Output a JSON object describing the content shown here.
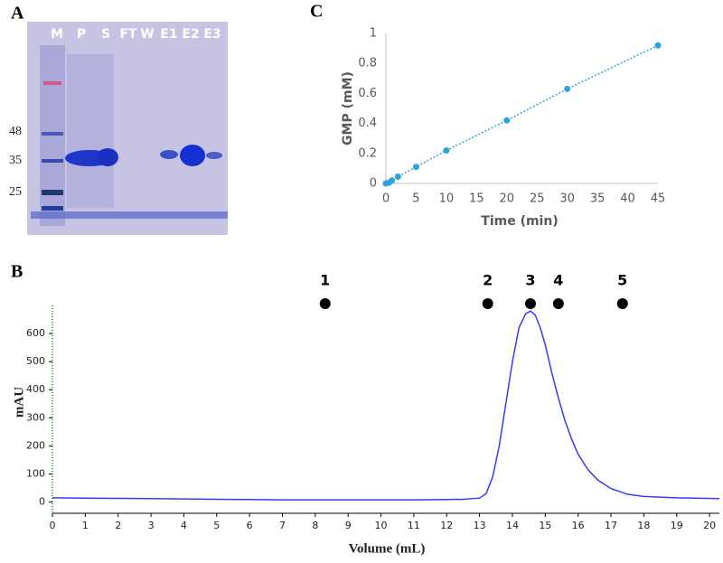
{
  "gel": {
    "panel_label": "A",
    "lanes": [
      "M",
      "P",
      "S",
      "FT",
      "W",
      "E1",
      "E2",
      "E3"
    ],
    "markers": [
      48,
      35,
      25
    ]
  },
  "chart_data": [
    {
      "type": "scatter",
      "panel_label": "C",
      "x": [
        0,
        0.5,
        1,
        2,
        5,
        10,
        20,
        30,
        45
      ],
      "values": [
        0,
        0.005,
        0.02,
        0.045,
        0.11,
        0.22,
        0.42,
        0.63,
        0.92
      ],
      "color": "#2ea3dc",
      "xlim": [
        0,
        45
      ],
      "ylim": [
        0,
        1
      ],
      "xticks": [
        0,
        5,
        10,
        15,
        20,
        25,
        30,
        35,
        40,
        45
      ],
      "yticks": [
        0,
        0.2,
        0.4,
        0.6,
        0.8,
        1
      ],
      "xlabel": "Time (min)",
      "ylabel": "GMP (mM)"
    },
    {
      "type": "line",
      "panel_label": "B",
      "x": [
        0,
        1,
        2,
        3,
        4,
        5,
        6,
        7,
        8,
        9,
        10,
        11,
        12,
        12.5,
        13,
        13.2,
        13.4,
        13.6,
        13.8,
        14,
        14.2,
        14.4,
        14.55,
        14.7,
        14.85,
        15,
        15.2,
        15.4,
        15.6,
        15.8,
        16,
        16.3,
        16.6,
        17,
        17.5,
        18,
        19,
        20.3
      ],
      "values": [
        15,
        14,
        13,
        12,
        11,
        10,
        9,
        8,
        8,
        8,
        8,
        8,
        9,
        10,
        14,
        30,
        90,
        200,
        350,
        500,
        620,
        670,
        680,
        665,
        620,
        560,
        460,
        370,
        290,
        225,
        170,
        115,
        78,
        48,
        28,
        20,
        15,
        12
      ],
      "color": "#3a3af0",
      "xlim": [
        0,
        20.3
      ],
      "ylim": [
        -40,
        700
      ],
      "xticks": [
        0,
        1,
        2,
        3,
        4,
        5,
        6,
        7,
        8,
        9,
        10,
        11,
        12,
        13,
        14,
        15,
        16,
        17,
        18,
        19,
        20
      ],
      "yticks": [
        0,
        100,
        200,
        300,
        400,
        500,
        600
      ],
      "xlabel": "Volume (mL)",
      "ylabel": "mAU",
      "annotations": {
        "labels": [
          "1",
          "2",
          "3",
          "4",
          "5"
        ],
        "x": [
          8.3,
          13.25,
          14.55,
          15.4,
          17.35
        ]
      }
    }
  ]
}
